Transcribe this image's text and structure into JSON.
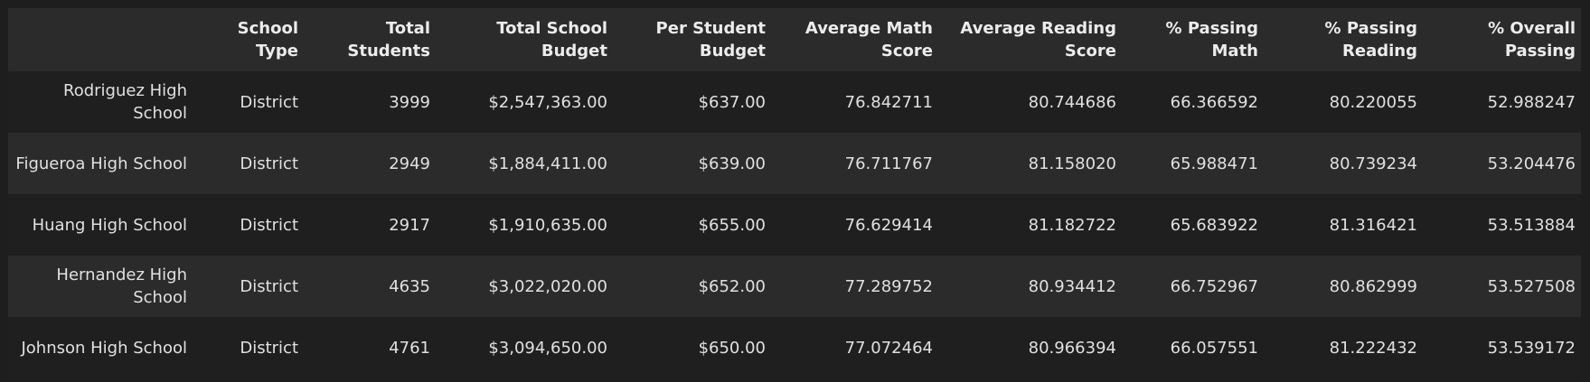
{
  "table": {
    "columns": [
      {
        "label": "",
        "key": "index"
      },
      {
        "label": "School Type",
        "key": "school_type"
      },
      {
        "label": "Total Students",
        "key": "total_students"
      },
      {
        "label": "Total School Budget",
        "key": "total_budget"
      },
      {
        "label": "Per Student Budget",
        "key": "per_student_budget"
      },
      {
        "label": "Average Math Score",
        "key": "avg_math"
      },
      {
        "label": "Average Reading Score",
        "key": "avg_reading"
      },
      {
        "label": "% Passing Math",
        "key": "pct_math"
      },
      {
        "label": "% Passing Reading",
        "key": "pct_reading"
      },
      {
        "label": "% Overall Passing",
        "key": "pct_overall"
      }
    ],
    "rows": [
      {
        "school": "Rodriguez High School",
        "school_type": "District",
        "total_students": "3999",
        "total_budget": "$2,547,363.00",
        "per_student_budget": "$637.00",
        "avg_math": "76.842711",
        "avg_reading": "80.744686",
        "pct_math": "66.366592",
        "pct_reading": "80.220055",
        "pct_overall": "52.988247"
      },
      {
        "school": "Figueroa High School",
        "school_type": "District",
        "total_students": "2949",
        "total_budget": "$1,884,411.00",
        "per_student_budget": "$639.00",
        "avg_math": "76.711767",
        "avg_reading": "81.158020",
        "pct_math": "65.988471",
        "pct_reading": "80.739234",
        "pct_overall": "53.204476"
      },
      {
        "school": "Huang High School",
        "school_type": "District",
        "total_students": "2917",
        "total_budget": "$1,910,635.00",
        "per_student_budget": "$655.00",
        "avg_math": "76.629414",
        "avg_reading": "81.182722",
        "pct_math": "65.683922",
        "pct_reading": "81.316421",
        "pct_overall": "53.513884"
      },
      {
        "school": "Hernandez High School",
        "school_type": "District",
        "total_students": "4635",
        "total_budget": "$3,022,020.00",
        "per_student_budget": "$652.00",
        "avg_math": "77.289752",
        "avg_reading": "80.934412",
        "pct_math": "66.752967",
        "pct_reading": "80.862999",
        "pct_overall": "53.527508"
      },
      {
        "school": "Johnson High School",
        "school_type": "District",
        "total_students": "4761",
        "total_budget": "$3,094,650.00",
        "per_student_budget": "$650.00",
        "avg_math": "77.072464",
        "avg_reading": "80.966394",
        "pct_math": "66.057551",
        "pct_reading": "81.222432",
        "pct_overall": "53.539172"
      }
    ]
  }
}
